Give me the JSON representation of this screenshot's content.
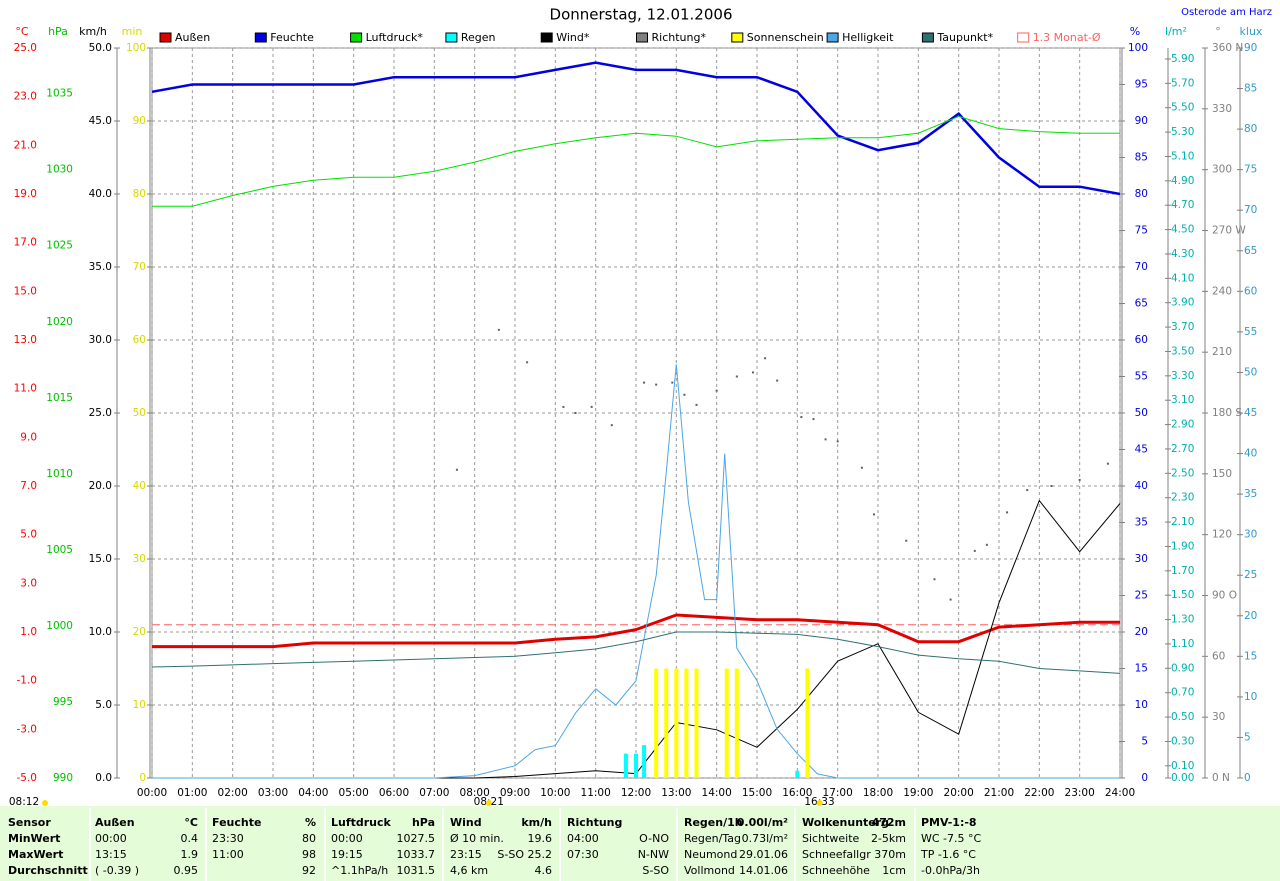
{
  "chart_data": {
    "type": "line",
    "title": "Donnerstag, 12.01.2006",
    "location": "Osterode am Harz",
    "x": [
      0,
      1,
      2,
      3,
      4,
      5,
      6,
      7,
      8,
      9,
      10,
      11,
      12,
      13,
      14,
      15,
      16,
      17,
      18,
      19,
      20,
      21,
      22,
      23,
      24
    ],
    "xlim": [
      0,
      24
    ],
    "xticks": [
      {
        "value": 0,
        "label": "00:00"
      },
      {
        "value": 1,
        "label": "01:00"
      },
      {
        "value": 2,
        "label": "02:00"
      },
      {
        "value": 3,
        "label": "03:00"
      },
      {
        "value": 4,
        "label": "04:00"
      },
      {
        "value": 5,
        "label": "05:00"
      },
      {
        "value": 6,
        "label": "06:00"
      },
      {
        "value": 7,
        "label": "07:00"
      },
      {
        "value": 8,
        "label": "08:00"
      },
      {
        "value": 9,
        "label": "09:00"
      },
      {
        "value": 10,
        "label": "10:00"
      },
      {
        "value": 11,
        "label": "11:00"
      },
      {
        "value": 12,
        "label": "12:00"
      },
      {
        "value": 13,
        "label": "13:00"
      },
      {
        "value": 14,
        "label": "14:00"
      },
      {
        "value": 15,
        "label": "15:00"
      },
      {
        "value": 16,
        "label": "16:00"
      },
      {
        "value": 17,
        "label": "17:00"
      },
      {
        "value": 18,
        "label": "18:00"
      },
      {
        "value": 19,
        "label": "19:00"
      },
      {
        "value": 20,
        "label": "20:00"
      },
      {
        "value": 21,
        "label": "21:00"
      },
      {
        "value": 22,
        "label": "22:00"
      },
      {
        "value": 23,
        "label": "23:00"
      },
      {
        "value": 24,
        "label": "24:00"
      }
    ],
    "grid": true,
    "axes": [
      {
        "unit": "°C",
        "color": "#ff0000",
        "lim": [
          -5,
          25
        ],
        "ticks": [
          {
            "value": 25,
            "label": "25.0"
          },
          {
            "value": 23,
            "label": "23.0"
          },
          {
            "value": 21,
            "label": "21.0"
          },
          {
            "value": 19,
            "label": "19.0"
          },
          {
            "value": 17,
            "label": "17.0"
          },
          {
            "value": 15,
            "label": "15.0"
          },
          {
            "value": 13,
            "label": "13.0"
          },
          {
            "value": 11,
            "label": "11.0"
          },
          {
            "value": 9,
            "label": "9.0"
          },
          {
            "value": 7,
            "label": "7.0"
          },
          {
            "value": 5,
            "label": "5.0"
          },
          {
            "value": 3,
            "label": "3.0"
          },
          {
            "value": 1,
            "label": "1.0"
          },
          {
            "value": -1,
            "label": "-1.0"
          },
          {
            "value": -3,
            "label": "-3.0"
          },
          {
            "value": -5,
            "label": "-5.0"
          }
        ]
      },
      {
        "unit": "hPa",
        "color": "#00c000",
        "lim": [
          990,
          1038
        ],
        "ticks": [
          990,
          995,
          1000,
          1005,
          1010,
          1015,
          1020,
          1025,
          1030,
          1035
        ]
      },
      {
        "unit": "km/h",
        "color": "#000000",
        "lim": [
          0,
          50
        ],
        "grid": true,
        "ticks": [
          {
            "value": 0,
            "label": "0.0"
          },
          {
            "value": 5,
            "label": "5.0"
          },
          {
            "value": 10,
            "label": "10.0"
          },
          {
            "value": 15,
            "label": "15.0"
          },
          {
            "value": 20,
            "label": "20.0"
          },
          {
            "value": 25,
            "label": "25.0"
          },
          {
            "value": 30,
            "label": "30.0"
          },
          {
            "value": 35,
            "label": "35.0"
          },
          {
            "value": 40,
            "label": "40.0"
          },
          {
            "value": 45,
            "label": "45.0"
          },
          {
            "value": 50,
            "label": "50.0"
          }
        ]
      },
      {
        "unit": "min",
        "color": "#d8d800",
        "lim": [
          0,
          100
        ],
        "ticks": [
          0,
          10,
          20,
          30,
          40,
          50,
          60,
          70,
          80,
          90,
          100
        ]
      },
      {
        "unit": "%",
        "color": "#0000e0",
        "lim": [
          0,
          100
        ],
        "ticks": [
          0,
          5,
          10,
          15,
          20,
          25,
          30,
          35,
          40,
          45,
          50,
          55,
          60,
          65,
          70,
          75,
          80,
          85,
          90,
          95,
          100
        ]
      },
      {
        "unit": "l/m²",
        "color": "#00b0b0",
        "lim": [
          0,
          5.99
        ],
        "ticks": [
          {
            "value": 0,
            "label": "0.00"
          },
          {
            "value": 0.1,
            "label": "0.10"
          },
          {
            "value": 0.3,
            "label": "0.30"
          },
          {
            "value": 0.5,
            "label": "0.50"
          },
          {
            "value": 0.7,
            "label": "0.70"
          },
          {
            "value": 0.9,
            "label": "0.90"
          },
          {
            "value": 1.1,
            "label": "1.10"
          },
          {
            "value": 1.3,
            "label": "1.30"
          },
          {
            "value": 1.5,
            "label": "1.50"
          },
          {
            "value": 1.7,
            "label": "1.70"
          },
          {
            "value": 1.9,
            "label": "1.90"
          },
          {
            "value": 2.1,
            "label": "2.10"
          },
          {
            "value": 2.3,
            "label": "2.30"
          },
          {
            "value": 2.5,
            "label": "2.50"
          },
          {
            "value": 2.7,
            "label": "2.70"
          },
          {
            "value": 2.9,
            "label": "2.90"
          },
          {
            "value": 3.1,
            "label": "3.10"
          },
          {
            "value": 3.3,
            "label": "3.30"
          },
          {
            "value": 3.5,
            "label": "3.50"
          },
          {
            "value": 3.7,
            "label": "3.70"
          },
          {
            "value": 3.9,
            "label": "3.90"
          },
          {
            "value": 4.1,
            "label": "4.10"
          },
          {
            "value": 4.3,
            "label": "4.30"
          },
          {
            "value": 4.5,
            "label": "4.50"
          },
          {
            "value": 4.7,
            "label": "4.70"
          },
          {
            "value": 4.9,
            "label": "4.90"
          },
          {
            "value": 5.1,
            "label": "5.10"
          },
          {
            "value": 5.3,
            "label": "5.30"
          },
          {
            "value": 5.5,
            "label": "5.50"
          },
          {
            "value": 5.7,
            "label": "5.70"
          },
          {
            "value": 5.9,
            "label": "5.90"
          }
        ]
      },
      {
        "unit": "°",
        "color": "#808080",
        "lim": [
          0,
          360
        ],
        "ticks": [
          {
            "value": 0,
            "label": "0 N"
          },
          30,
          60,
          {
            "value": 90,
            "label": "90 O"
          },
          120,
          150,
          {
            "value": 180,
            "label": "180 S"
          },
          210,
          240,
          {
            "value": 270,
            "label": "270 W"
          },
          300,
          330,
          {
            "value": 360,
            "label": "360 N"
          }
        ]
      },
      {
        "unit": "klux",
        "color": "#3399cc",
        "lim": [
          0,
          90
        ],
        "ticks": [
          0,
          5,
          10,
          15,
          20,
          25,
          30,
          35,
          40,
          45,
          50,
          55,
          60,
          65,
          70,
          75,
          80,
          85,
          90
        ]
      }
    ],
    "series": [
      {
        "name": "Außen",
        "color": "#e00000",
        "axis": 0,
        "type": "line",
        "width": 3,
        "values": [
          0.4,
          0.4,
          0.4,
          0.4,
          0.55,
          0.55,
          0.55,
          0.55,
          0.55,
          0.55,
          0.7,
          0.8,
          1.1,
          1.7,
          1.6,
          1.5,
          1.5,
          1.4,
          1.3,
          0.6,
          0.6,
          1.2,
          1.3,
          1.4,
          1.4
        ]
      },
      {
        "name": "Feuchte",
        "color": "#0000e0",
        "axis": 4,
        "type": "line",
        "width": 2.5,
        "values": [
          94,
          95,
          95,
          95,
          95,
          95,
          96,
          96,
          96,
          96,
          97,
          98,
          97,
          97,
          96,
          96,
          94,
          88,
          86,
          87,
          91,
          85,
          81,
          81,
          80
        ]
      },
      {
        "name": "Luftdruck*",
        "color": "#00e000",
        "axis": 1,
        "type": "line",
        "width": 1,
        "values": [
          1027.6,
          1027.6,
          1028.3,
          1028.9,
          1029.3,
          1029.5,
          1029.5,
          1029.9,
          1030.5,
          1031.2,
          1031.7,
          1032.1,
          1032.4,
          1032.2,
          1031.5,
          1031.9,
          1032.0,
          1032.1,
          1032.1,
          1032.4,
          1033.5,
          1032.7,
          1032.5,
          1032.4,
          1032.4
        ]
      },
      {
        "name": "Regen",
        "color": "#00ffff",
        "axis": 5,
        "type": "bar",
        "x": [
          11.75,
          12.0,
          12.2,
          16.0
        ],
        "values": [
          0.2,
          0.2,
          0.27,
          0.06
        ]
      },
      {
        "name": "Wind*",
        "color": "#000000",
        "axis": 2,
        "type": "line",
        "width": 1,
        "values": [
          0,
          0,
          0,
          0,
          0,
          0,
          0,
          0,
          0,
          0.1,
          0.3,
          0.5,
          0.3,
          3.8,
          3.3,
          2.1,
          4.7,
          8,
          9.2,
          4.5,
          3,
          12,
          19,
          15.5,
          18.8
        ]
      },
      {
        "name": "Richtung*",
        "color": "#808080",
        "axis": 6,
        "type": "scatter",
        "x": [
          7.56,
          8.6,
          9.3,
          10.2,
          10.5,
          10.9,
          11.4,
          12.2,
          12.5,
          12.9,
          13.2,
          13.5,
          14,
          14.5,
          14.9,
          15.2,
          15.5,
          16.1,
          16.4,
          16.7,
          17,
          17.6,
          17.9,
          18.7,
          19.4,
          19.8,
          20.4,
          20.7,
          21.2,
          21.7,
          22.3,
          23,
          23.7
        ],
        "values": [
          152,
          221,
          205,
          183,
          180,
          183,
          174,
          195,
          194,
          195,
          189,
          184,
          191,
          198,
          200,
          207,
          196,
          178,
          177,
          167,
          166,
          153,
          130,
          117,
          98,
          88,
          112,
          115,
          131,
          142,
          144,
          147,
          155
        ]
      },
      {
        "name": "Sonnenschein",
        "color": "#ffff00",
        "axis": 3,
        "type": "bar",
        "x": [
          12.5,
          12.75,
          13,
          13.25,
          13.5,
          14.25,
          14.5,
          16.25
        ],
        "values": [
          15,
          15,
          15,
          15,
          15,
          15,
          15,
          15
        ]
      },
      {
        "name": "Helligkeit",
        "color": "#4da6e6",
        "axis": 7,
        "type": "line",
        "width": 1,
        "x": [
          0,
          7,
          8,
          9,
          9.5,
          10,
          10.5,
          11,
          11.5,
          12,
          12.5,
          12.7,
          13,
          13.3,
          13.7,
          14,
          14.2,
          14.5,
          15,
          15.5,
          16,
          16.5,
          17,
          24
        ],
        "values": [
          0,
          0,
          0.3,
          1.5,
          3.5,
          4,
          8,
          11,
          9,
          12,
          25,
          35,
          51,
          34,
          22,
          22,
          40,
          16,
          12,
          6,
          3,
          0.5,
          0,
          0
        ]
      },
      {
        "name": "Taupunkt*",
        "color": "#2f7070",
        "axis": 0,
        "type": "line",
        "width": 1,
        "values": [
          -0.44,
          -0.4,
          -0.35,
          -0.3,
          -0.25,
          -0.2,
          -0.15,
          -0.1,
          -0.05,
          0,
          0.15,
          0.3,
          0.6,
          1.0,
          1.0,
          0.95,
          0.9,
          0.7,
          0.4,
          0.05,
          -0.1,
          -0.2,
          -0.5,
          -0.6,
          -0.7
        ]
      }
    ],
    "reference_lines": [
      {
        "label": "1.3 Monat-Ø",
        "value": 1.3,
        "axis": 0,
        "color": "#ff6060"
      }
    ],
    "annotations": [
      {
        "text": "08:12"
      },
      {
        "text": "08:21",
        "x": 8.35
      },
      {
        "text": "16:33",
        "x": 16.55
      }
    ]
  },
  "table": {
    "rows": [
      [
        "Sensor",
        "Außen",
        "°C",
        "Feuchte",
        "%",
        "Luftdruck",
        "hPa",
        "Wind",
        "km/h",
        "Richtung",
        null,
        "Regen/1h",
        "0.00l/m²",
        "Wolkenunterg",
        "472m",
        "PMV-1:-8"
      ],
      [
        "MinWert",
        "00:00",
        "0.4",
        "23:30",
        "80",
        "00:00",
        "1027.5",
        "Ø 10 min.",
        "19.6",
        "04:00",
        "O-NO",
        "Regen/Tag",
        "0.73l/m²",
        "Sichtweite",
        "2-5km",
        "WC -7.5 °C"
      ],
      [
        "MaxWert",
        "13:15",
        "1.9",
        "11:00",
        "98",
        "19:15",
        "1033.7",
        "23:15",
        "S-SO 25.2",
        "07:30",
        "N-NW",
        "Neumond",
        "29.01.06",
        "Schneefallgr",
        "370m",
        "TP -1.6 °C"
      ],
      [
        "Durchschnitt",
        "( -0.39 )",
        "0.95",
        null,
        "92",
        "^1.1hPa/h",
        "1031.5",
        "4,6 km",
        "4.6",
        null,
        "S-SO",
        "Vollmond",
        "14.01.06",
        "Schneehöhe",
        "1cm",
        "-0.0hPa/3h"
      ]
    ]
  }
}
